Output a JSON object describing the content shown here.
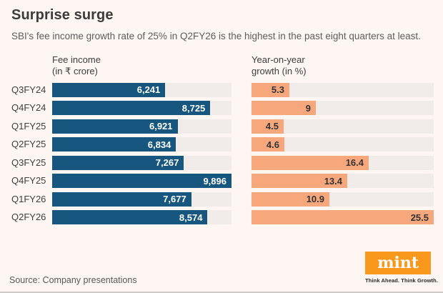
{
  "header": {
    "title": "Surprise surge",
    "subtitle": "SBI's fee income growth rate of 25% in Q2FY26 is the highest in the past eight quarters at least."
  },
  "footer": {
    "source": "Source: Company presentations",
    "brand": {
      "logo_text": "mint",
      "tagline": "Think Ahead. Think Growth."
    }
  },
  "colors": {
    "background": "#fdf6f3",
    "fee_bar": "#16567f",
    "growth_bar": "#f6a77c",
    "track": "#f1ecea",
    "fee_value_text": "#ffffff",
    "growth_value_text": "#333333",
    "logo_orange": "#f8991d"
  },
  "chart_data": {
    "type": "bar",
    "orientation": "horizontal",
    "grid": false,
    "categories": [
      "Q3FY24",
      "Q4FY24",
      "Q1FY25",
      "Q2FY25",
      "Q3FY25",
      "Q4FY25",
      "Q1FY26",
      "Q2FY26"
    ],
    "series": [
      {
        "name": "Fee income (in ₹ crore)",
        "header_line1": "Fee income",
        "header_line2": "(in ₹ crore)",
        "values": [
          6241,
          8725,
          6921,
          6834,
          7267,
          9896,
          7677,
          8574
        ],
        "value_labels": [
          "6,241",
          "8,725",
          "6,921",
          "6,834",
          "7,267",
          "9,896",
          "7,677",
          "8,574"
        ],
        "axis_max": 9896,
        "color": "#16567f"
      },
      {
        "name": "Year-on-year growth (in %)",
        "header_line1": "Year-on-year",
        "header_line2": "growth (in %)",
        "values": [
          5.3,
          9,
          4.5,
          4.6,
          16.4,
          13.4,
          10.9,
          25.5
        ],
        "value_labels": [
          "5.3",
          "9",
          "4.5",
          "4.6",
          "16.4",
          "13.4",
          "10.9",
          "25.5"
        ],
        "axis_max": 25.5,
        "color": "#f6a77c"
      }
    ]
  }
}
